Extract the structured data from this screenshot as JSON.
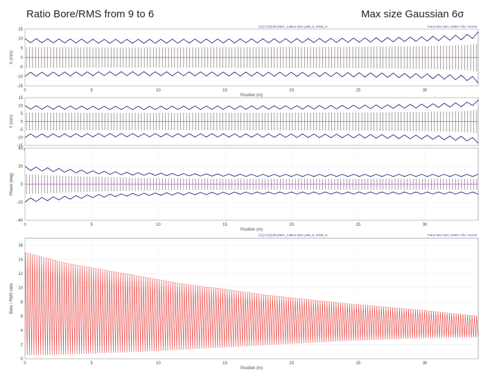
{
  "slide": {
    "title_left": "Ratio Bore/RMS from 9 to 6",
    "title_right": "Max size Gaussian 6σ"
  },
  "colors": {
    "envelope": "#1a237e",
    "element": "#777777",
    "reference": "#d63ad6",
    "ratio": "#e53935",
    "frame": "#888888"
  },
  "chart_data": [
    {
      "type": "line",
      "panel": "x-envelope",
      "xlabel": "Position (m)",
      "ylabel": "X (mm)",
      "xlim": [
        0,
        34
      ],
      "ylim": [
        -15,
        15
      ],
      "xticks": [
        "0",
        "5",
        "10",
        "15",
        "20",
        "25",
        "30"
      ],
      "yticks": [
        "15",
        "10",
        "5",
        "0",
        "-5",
        "-10",
        "-15"
      ],
      "caption_left": "[X] [Y] [Z] [fm] BEC_Lattice 2011 path_6_Infinit_m",
      "caption_right": "Trace Win  CEA / DSM / Irfu / SACM",
      "series": [
        {
          "name": "upper envelope",
          "x": [
            0,
            3,
            6,
            9,
            12,
            15,
            18,
            21,
            24,
            27,
            30,
            33,
            34
          ],
          "y": [
            10,
            9.8,
            9.6,
            9.6,
            9.7,
            9.8,
            9.9,
            10,
            10.2,
            10.5,
            11,
            12,
            13.5
          ]
        },
        {
          "name": "lower envelope",
          "x": [
            0,
            3,
            6,
            9,
            12,
            15,
            18,
            21,
            24,
            27,
            30,
            33,
            34
          ],
          "y": [
            -10,
            -9.8,
            -9.6,
            -9.6,
            -9.7,
            -9.8,
            -9.9,
            -10,
            -10.2,
            -10.5,
            -11,
            -12,
            -13.5
          ]
        },
        {
          "name": "reference",
          "x": [
            0,
            34
          ],
          "y": [
            0,
            0
          ]
        }
      ]
    },
    {
      "type": "line",
      "panel": "y-envelope",
      "xlabel": "Position (m)",
      "ylabel": "Y (mm)",
      "xlim": [
        0,
        34
      ],
      "ylim": [
        -15,
        15
      ],
      "xticks": [
        "0",
        "5",
        "10",
        "15",
        "20",
        "25",
        "30"
      ],
      "yticks": [
        "15",
        "10",
        "5",
        "0",
        "-5",
        "-10",
        "-15"
      ],
      "series": [
        {
          "name": "upper envelope",
          "x": [
            0,
            3,
            6,
            9,
            12,
            15,
            18,
            21,
            24,
            27,
            30,
            33,
            34
          ],
          "y": [
            10,
            9.8,
            9.6,
            9.6,
            9.7,
            9.8,
            9.9,
            10,
            10.2,
            10.5,
            11,
            12,
            13.5
          ]
        },
        {
          "name": "lower envelope",
          "x": [
            0,
            3,
            6,
            9,
            12,
            15,
            18,
            21,
            24,
            27,
            30,
            33,
            34
          ],
          "y": [
            -10,
            -9.8,
            -9.6,
            -9.6,
            -9.7,
            -9.8,
            -9.9,
            -10,
            -10.2,
            -10.5,
            -11,
            -12,
            -13.5
          ]
        },
        {
          "name": "reference",
          "x": [
            0,
            34
          ],
          "y": [
            0,
            0
          ]
        }
      ]
    },
    {
      "type": "line",
      "panel": "phase-envelope",
      "xlabel": "Position (m)",
      "ylabel": "Phase (deg)",
      "xlim": [
        0,
        34
      ],
      "ylim": [
        -40,
        40
      ],
      "xticks": [
        "0",
        "5",
        "10",
        "15",
        "20",
        "25",
        "30"
      ],
      "yticks": [
        "40",
        "20",
        "0",
        "-20",
        "-40"
      ],
      "series": [
        {
          "name": "upper envelope",
          "x": [
            0,
            2,
            5,
            8,
            11,
            14,
            17,
            20,
            23,
            26,
            29,
            32,
            34
          ],
          "y": [
            20,
            18,
            15,
            13,
            12,
            11.5,
            11,
            11,
            11,
            11,
            11,
            11,
            11
          ]
        },
        {
          "name": "lower envelope",
          "x": [
            0,
            2,
            5,
            8,
            11,
            14,
            17,
            20,
            23,
            26,
            29,
            32,
            34
          ],
          "y": [
            -20,
            -18,
            -15,
            -13,
            -12,
            -11.5,
            -11,
            -11,
            -11,
            -11,
            -11,
            -11,
            -11
          ]
        },
        {
          "name": "reference",
          "x": [
            0,
            34
          ],
          "y": [
            0,
            0
          ]
        }
      ]
    },
    {
      "type": "line",
      "panel": "bore-ratio",
      "xlabel": "Position (m)",
      "ylabel": "Bore / RMS ratio",
      "xlim": [
        0,
        34
      ],
      "ylim": [
        0,
        17
      ],
      "xticks": [
        "0",
        "5",
        "10",
        "15",
        "20",
        "25",
        "30"
      ],
      "yticks": [
        "16",
        "14",
        "12",
        "10",
        "8",
        "6",
        "4",
        "2",
        "0"
      ],
      "caption_left": "[X] [Y] [Z] [fm] BEC_Lattice 2011 path_6_Infinit_m",
      "caption_right": "Trace Win  CEA / DSM / Irfu / SACM",
      "series": [
        {
          "name": "peak ratio",
          "x": [
            0,
            3,
            6,
            9,
            12,
            15,
            18,
            21,
            24,
            27,
            30,
            33,
            34
          ],
          "y": [
            15,
            13.5,
            12.5,
            11.5,
            10.5,
            9.8,
            9,
            8.4,
            7.8,
            7.3,
            6.8,
            6.2,
            6.0
          ]
        },
        {
          "name": "minimum ratio",
          "x": [
            0,
            3,
            6,
            9,
            12,
            15,
            18,
            21,
            24,
            27,
            30,
            33,
            34
          ],
          "y": [
            0.5,
            0.6,
            0.8,
            1.0,
            1.3,
            1.6,
            1.9,
            2.2,
            2.5,
            2.7,
            2.9,
            3.0,
            3.0
          ]
        }
      ]
    }
  ]
}
